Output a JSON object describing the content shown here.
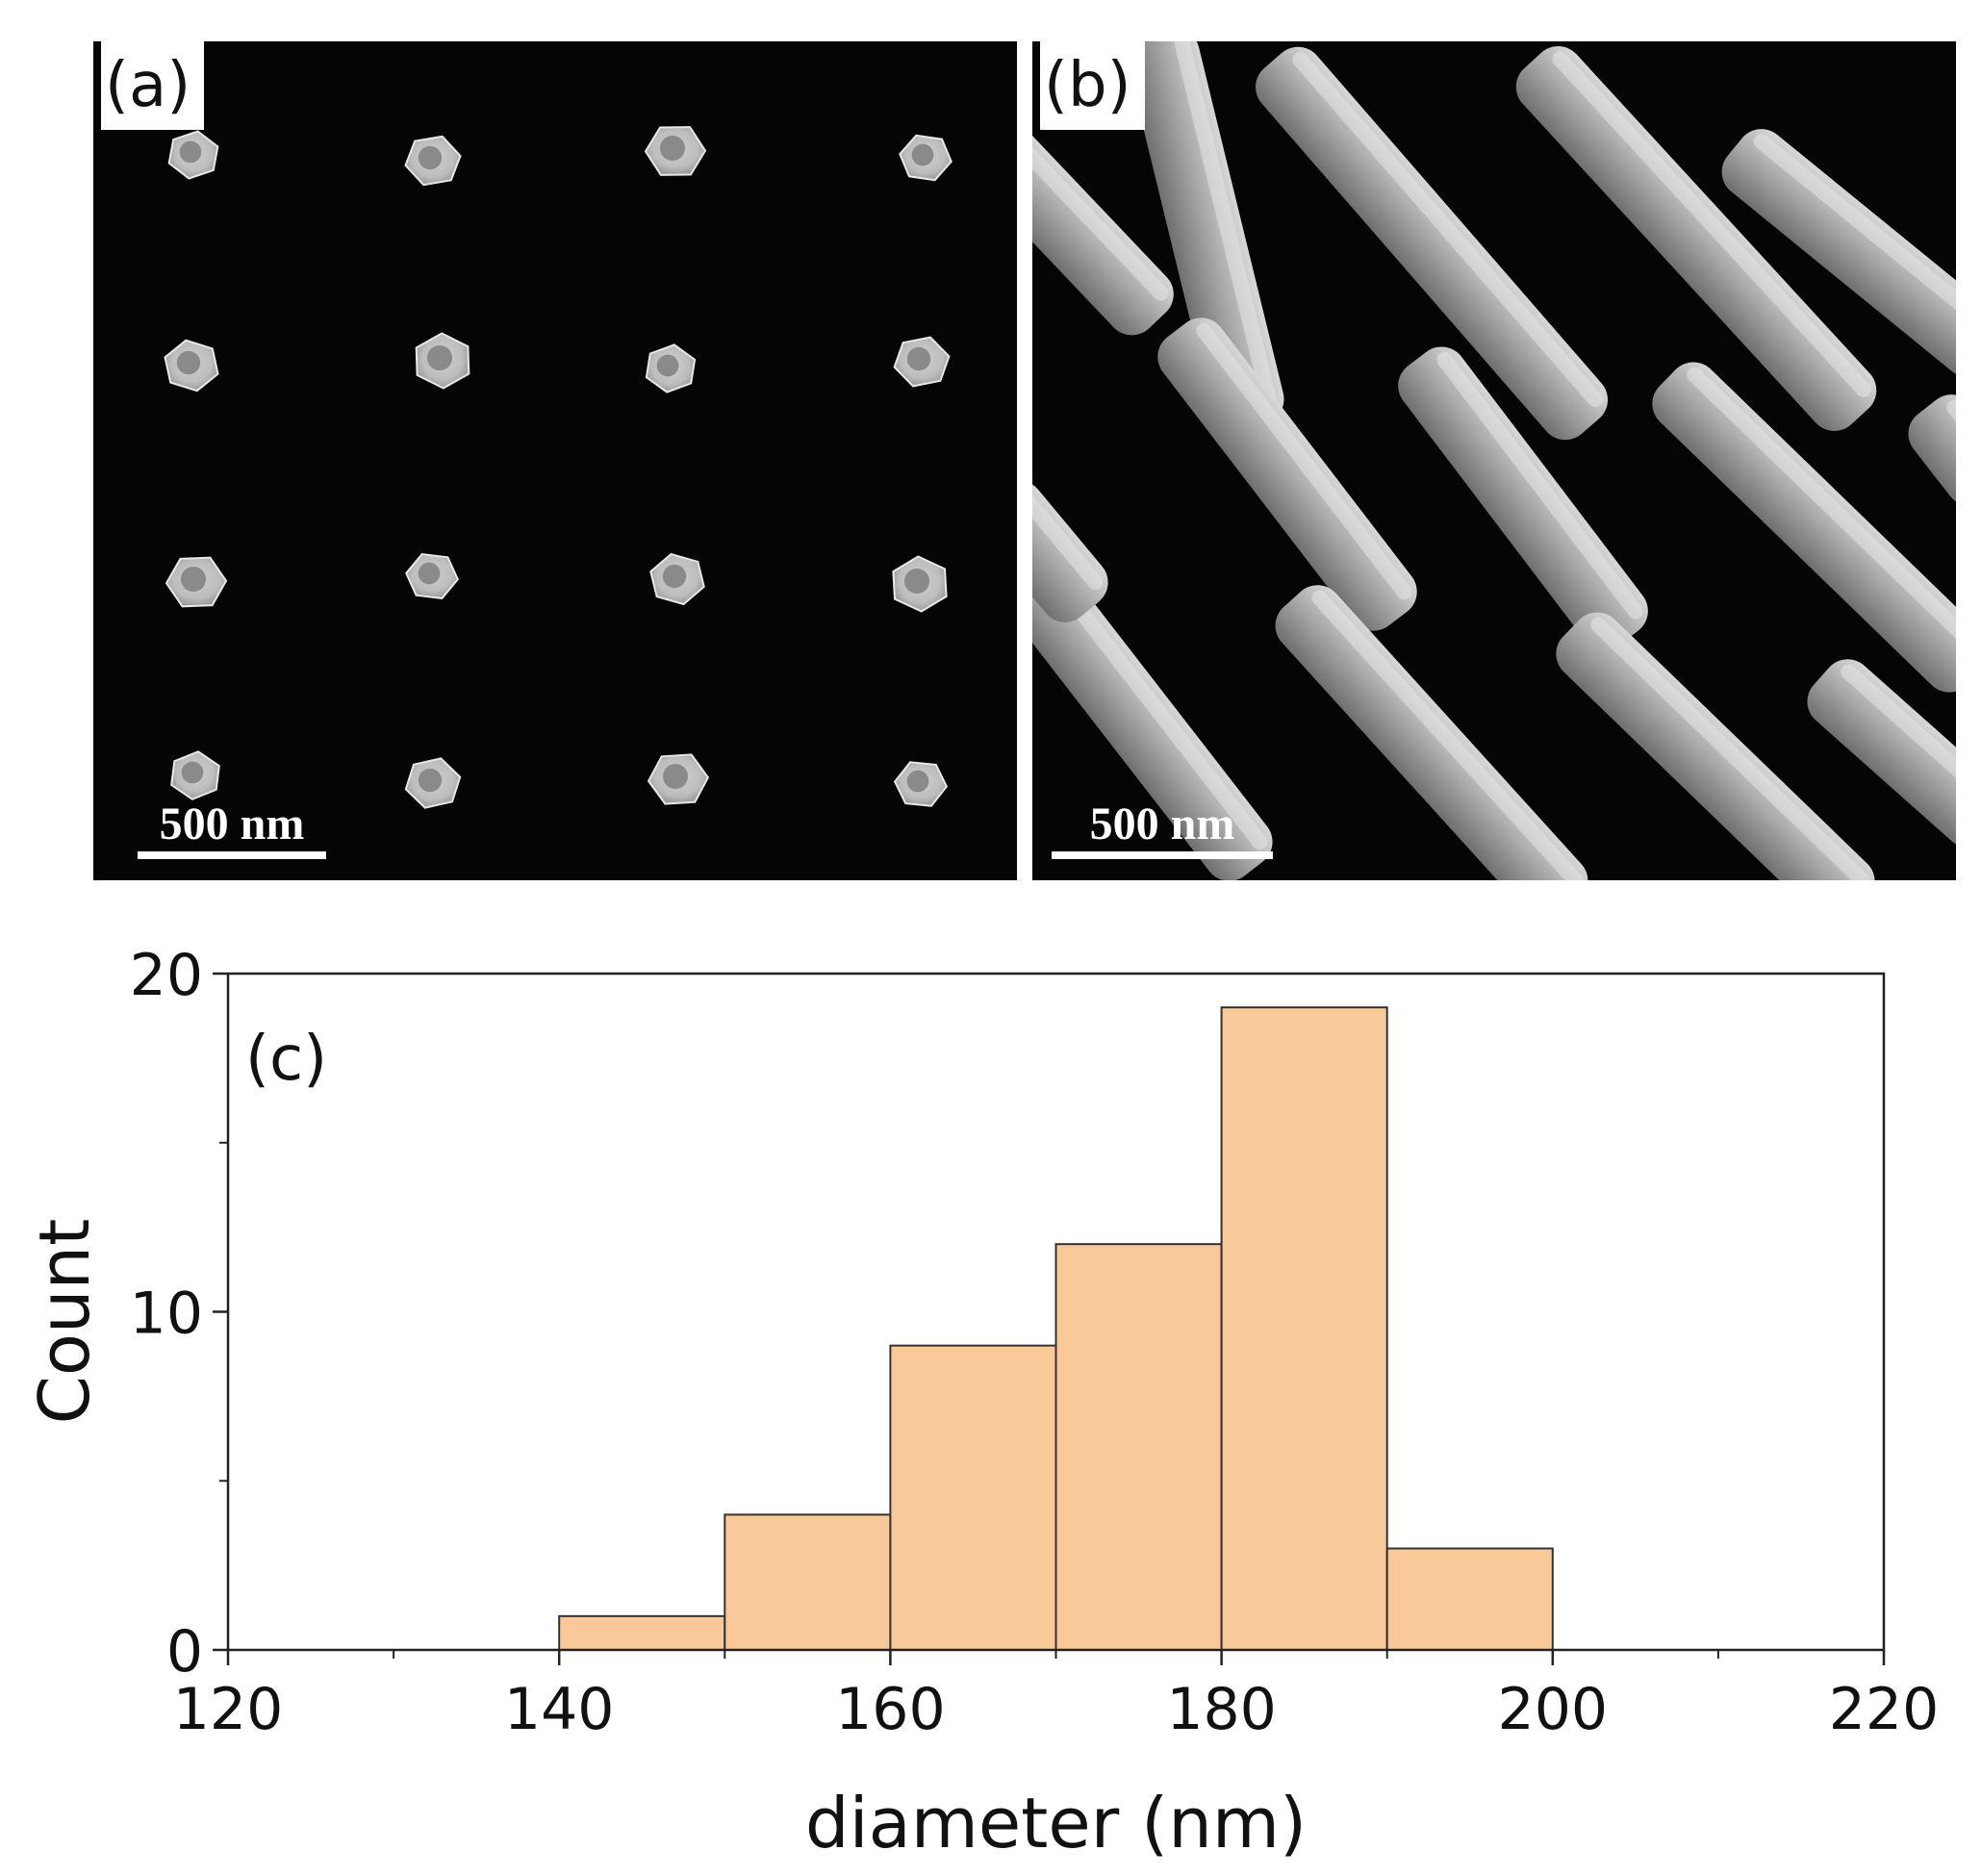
{
  "panels": {
    "a": {
      "label": "(a)",
      "scalebar": "500 nm"
    },
    "b": {
      "label": "(b)",
      "scalebar": "500 nm"
    }
  },
  "colors": {
    "bar_fill": "#f9c999",
    "bar_stroke": "#333333",
    "sem_background": "#050505"
  },
  "chart_data": {
    "type": "bar",
    "panel_label": "(c)",
    "title": "",
    "xlabel": "diameter (nm)",
    "ylabel": "Count",
    "xlim": [
      120,
      220
    ],
    "ylim": [
      0,
      20
    ],
    "xticks": [
      120,
      140,
      160,
      180,
      200,
      220
    ],
    "yticks": [
      0,
      10,
      20
    ],
    "bin_width": 10,
    "bins": [
      {
        "x": 140,
        "value": 1
      },
      {
        "x": 150,
        "value": 4
      },
      {
        "x": 160,
        "value": 9
      },
      {
        "x": 170,
        "value": 12
      },
      {
        "x": 180,
        "value": 19
      },
      {
        "x": 190,
        "value": 3
      }
    ],
    "grid": false,
    "legend": false
  }
}
